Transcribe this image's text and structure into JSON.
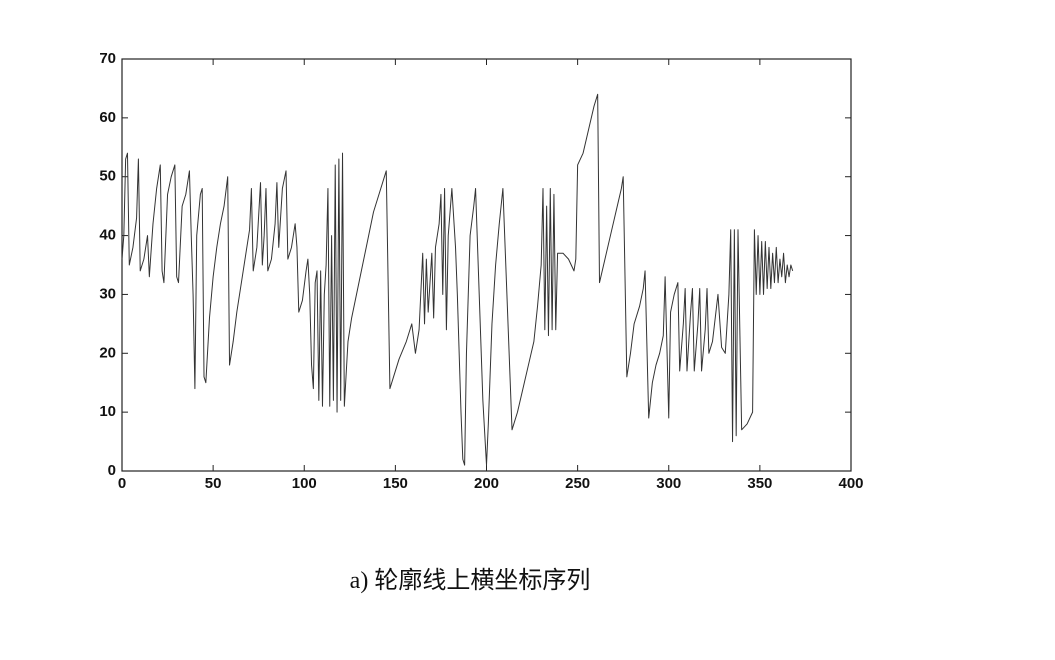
{
  "chart_data": {
    "type": "line",
    "caption": "a) 轮廓线上横坐标序列",
    "xlim": [
      0,
      400
    ],
    "xticks": [
      0,
      50,
      100,
      150,
      200,
      250,
      300,
      350,
      400
    ],
    "ylim": [
      0,
      70
    ],
    "yticks": [
      0,
      10,
      20,
      30,
      40,
      50,
      60,
      70
    ],
    "color": "#333333",
    "x": [
      0,
      1,
      2,
      3,
      4,
      6,
      8,
      9,
      10,
      12,
      14,
      15,
      17,
      19,
      21,
      22,
      23,
      25,
      27,
      29,
      30,
      31,
      33,
      35,
      37,
      38,
      39,
      40,
      41,
      43,
      44,
      45,
      46,
      48,
      50,
      52,
      54,
      56,
      58,
      59,
      61,
      63,
      66,
      68,
      70,
      71,
      72,
      74,
      76,
      77,
      78,
      79,
      80,
      82,
      84,
      85,
      86,
      88,
      90,
      91,
      93,
      95,
      96,
      97,
      99,
      101,
      102,
      103,
      104,
      105,
      106,
      107,
      108,
      109,
      110,
      111,
      112,
      113,
      114,
      115,
      116,
      117,
      118,
      119,
      120,
      121,
      122,
      124,
      126,
      130,
      134,
      138,
      142,
      145,
      147,
      149,
      152,
      156,
      159,
      161,
      163,
      165,
      166,
      167,
      168,
      170,
      171,
      172,
      174,
      175,
      176,
      177,
      178,
      179,
      181,
      183,
      184,
      186,
      187,
      188,
      189,
      190,
      191,
      193,
      194,
      196,
      198,
      200,
      201,
      203,
      205,
      207,
      209,
      214,
      217,
      220,
      223,
      226,
      228,
      230,
      231,
      232,
      233,
      234,
      235,
      236,
      237,
      238,
      239,
      242,
      245,
      248,
      249,
      250,
      253,
      256,
      259,
      261,
      262,
      265,
      268,
      271,
      274,
      275,
      277,
      279,
      281,
      284,
      286,
      287,
      289,
      291,
      293,
      295,
      297,
      298,
      300,
      301,
      303,
      305,
      306,
      308,
      309,
      310,
      312,
      313,
      314,
      316,
      317,
      318,
      320,
      321,
      322,
      324,
      327,
      329,
      331,
      333,
      334,
      335,
      336,
      337,
      338,
      340,
      343,
      346,
      347,
      348,
      349,
      350,
      351,
      352,
      353,
      354,
      355,
      356,
      357,
      358,
      359,
      360,
      361,
      362,
      363,
      364,
      365,
      366,
      367,
      368
    ],
    "values": [
      36,
      40,
      53,
      54,
      35,
      38,
      43,
      53,
      34,
      36,
      40,
      33,
      42,
      48,
      52,
      34,
      32,
      47,
      50,
      52,
      33,
      32,
      45,
      47,
      51,
      40,
      30,
      14,
      40,
      47,
      48,
      16,
      15,
      26,
      33,
      38,
      42,
      45,
      50,
      18,
      22,
      27,
      33,
      37,
      41,
      48,
      34,
      38,
      49,
      35,
      40,
      48,
      34,
      36,
      42,
      49,
      38,
      48,
      51,
      36,
      38,
      42,
      38,
      27,
      29,
      34,
      36,
      30,
      18,
      14,
      32,
      34,
      12,
      34,
      11,
      30,
      35,
      48,
      11,
      40,
      12,
      52,
      10,
      53,
      12,
      54,
      11,
      22,
      26,
      32,
      38,
      44,
      48,
      51,
      14,
      16,
      19,
      22,
      25,
      20,
      24,
      37,
      25,
      36,
      27,
      37,
      26,
      38,
      42,
      47,
      30,
      48,
      24,
      40,
      48,
      38,
      30,
      10,
      2,
      1,
      20,
      30,
      40,
      45,
      48,
      30,
      12,
      1,
      8,
      25,
      35,
      42,
      48,
      7,
      10,
      14,
      18,
      22,
      28,
      35,
      48,
      24,
      45,
      23,
      48,
      24,
      47,
      24,
      37,
      37,
      36,
      34,
      36,
      52,
      54,
      58,
      62,
      64,
      32,
      36,
      40,
      44,
      48,
      50,
      16,
      20,
      25,
      28,
      31,
      34,
      9,
      15,
      18,
      20,
      23,
      33,
      9,
      27,
      30,
      32,
      17,
      25,
      31,
      17,
      27,
      31,
      17,
      25,
      31,
      17,
      24,
      31,
      20,
      22,
      30,
      21,
      20,
      30,
      41,
      5,
      41,
      6,
      41,
      7,
      8,
      10,
      41,
      30,
      40,
      30,
      39,
      30,
      39,
      31,
      38,
      31,
      37,
      32,
      38,
      32,
      36,
      33,
      37,
      32,
      35,
      33,
      35,
      34
    ]
  }
}
